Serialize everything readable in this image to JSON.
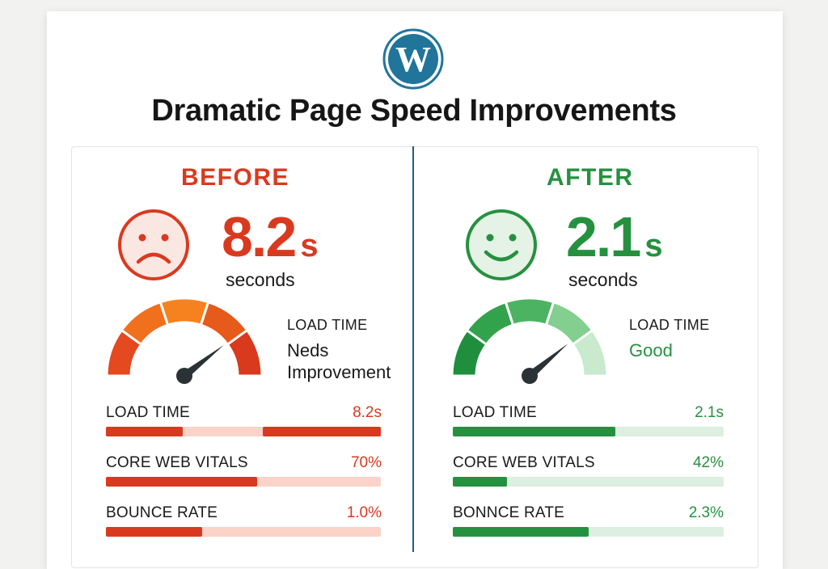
{
  "page": {
    "title": "Dramatic Page Speed Improvements",
    "logo": "wordpress-logo"
  },
  "before": {
    "title": "BEFORE",
    "value": "8.2",
    "unit": "s",
    "unit_caption": "seconds",
    "face": "sad-face-icon",
    "gauge_label": "LOAD TIME",
    "gauge_status_line1": "Neds",
    "gauge_status_line2": "Improvement",
    "color": "#d93a1f",
    "track_color": "#fbd3c8",
    "metrics": [
      {
        "label": "LOAD TIME",
        "value": "8.2s",
        "fill": 0.28,
        "fill2_start": 0.57
      },
      {
        "label": "CORE WEB VITALS",
        "value": "70%",
        "fill": 0.55
      },
      {
        "label": "BOUNCE RATE",
        "value": "1.0%",
        "fill": 0.35
      }
    ]
  },
  "after": {
    "title": "AFTER",
    "value": "2.1",
    "unit": "s",
    "unit_caption": "seconds",
    "face": "happy-face-icon",
    "gauge_label": "LOAD TIME",
    "gauge_status": "Good",
    "color": "#25913f",
    "track_color": "#dcefe0",
    "metrics": [
      {
        "label": "LOAD TIME",
        "value": "2.1s",
        "fill": 0.6
      },
      {
        "label": "CORE WEB VITALS",
        "value": "42%",
        "fill": 0.2
      },
      {
        "label": "BONNCE RATE",
        "value": "2.3%",
        "fill": 0.5
      }
    ]
  }
}
